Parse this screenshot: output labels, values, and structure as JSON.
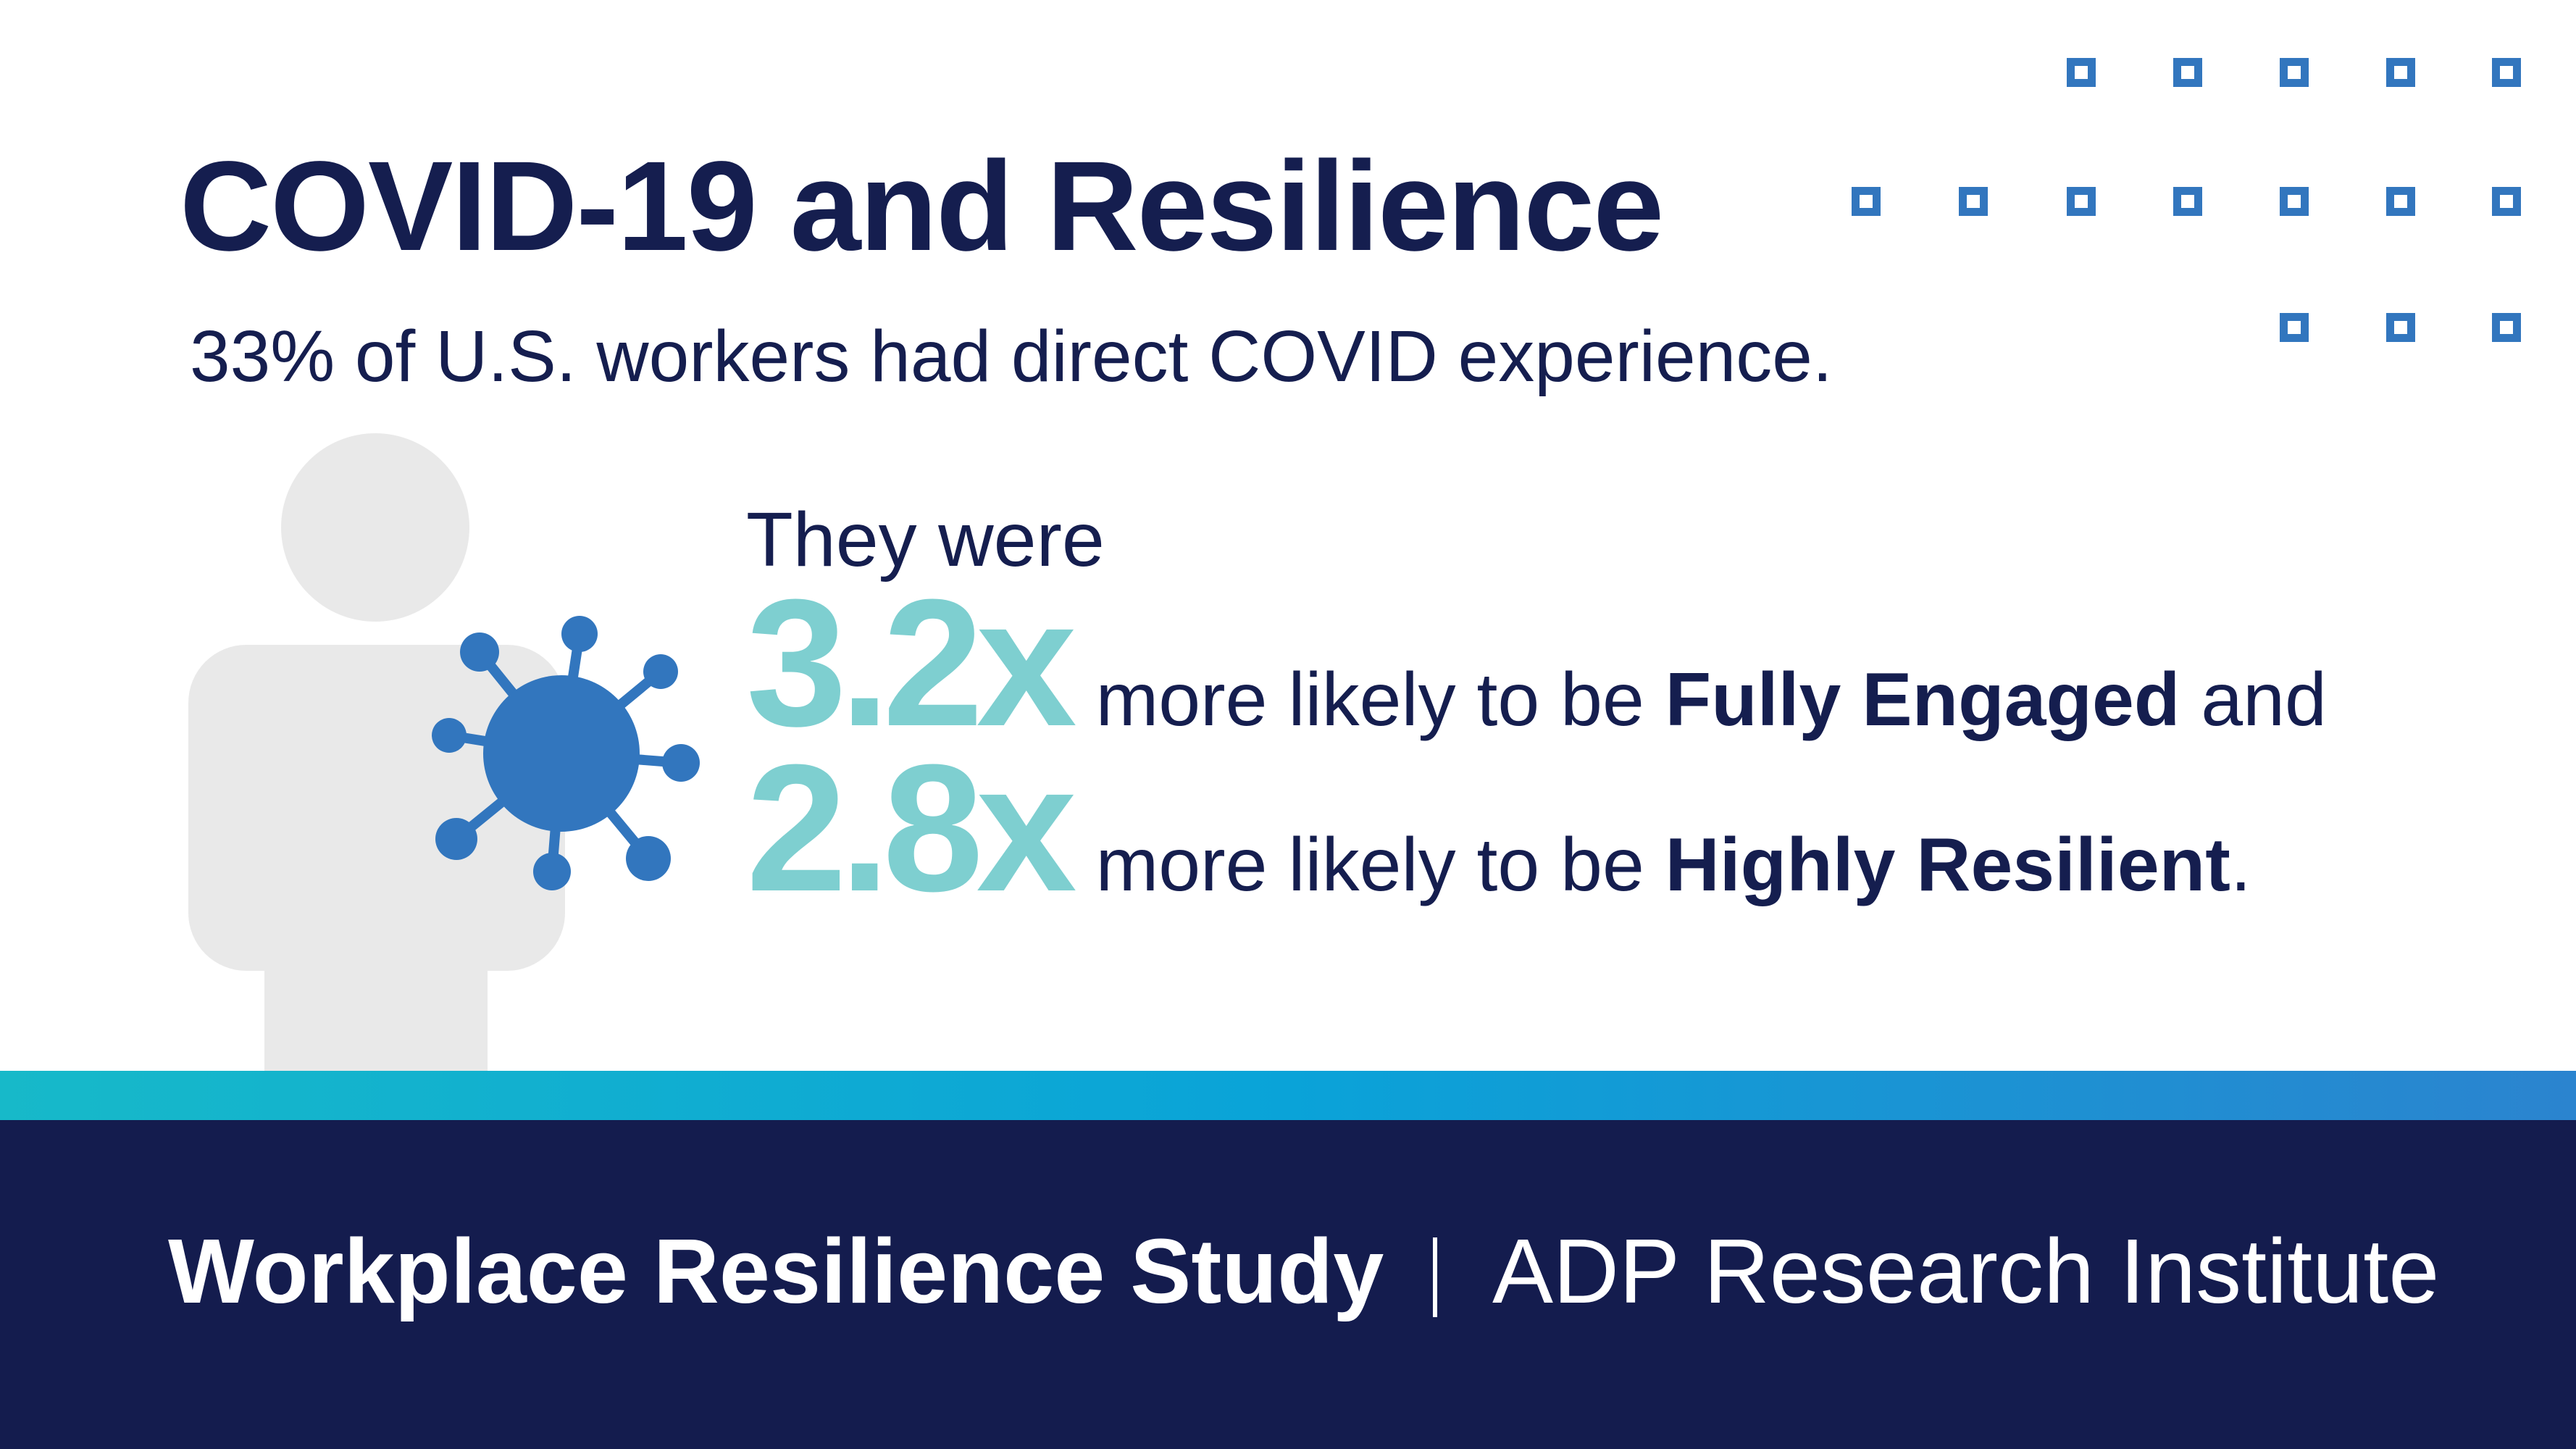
{
  "header": {
    "title": "COVID-19 and Resilience",
    "subtitle": "33% of U.S. workers had direct COVID experience."
  },
  "body": {
    "lead": "They were",
    "stats": [
      {
        "value": "3.2x",
        "prefix": "more likely to be ",
        "emphasis": "Fully Engaged",
        "suffix": " and"
      },
      {
        "value": "2.8x",
        "prefix": "more likely to be ",
        "emphasis": "Highly Resilient",
        "suffix": "."
      }
    ]
  },
  "illustration": {
    "person_icon": "person-silhouette-icon",
    "virus_icon": "coronavirus-icon"
  },
  "decoration": {
    "dot_icon": "square-dot-icon"
  },
  "footer": {
    "study_name": "Workplace Resilience Study",
    "separator": "|",
    "organization": "ADP Research Institute"
  },
  "colors": {
    "navy": "#151e4f",
    "teal_stat": "#7ecfd0",
    "virus_blue": "#3276be",
    "person_gray": "#e9e9e9",
    "footer_bg": "#141c4e",
    "gradient_start": "#17b9c9",
    "gradient_end": "#2b84cf"
  }
}
